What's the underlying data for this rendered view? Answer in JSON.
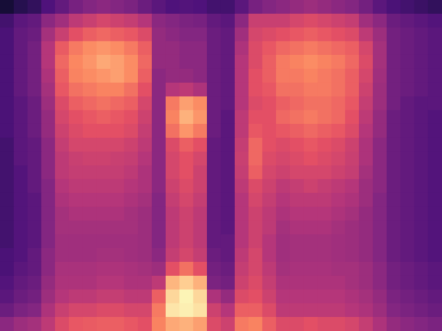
{
  "chart_data": {
    "type": "heatmap",
    "tick_labels": false,
    "value_range": [
      0,
      100
    ],
    "cells": [
      [
        10,
        15,
        18,
        25,
        30,
        35,
        38,
        40,
        38,
        36,
        32,
        28,
        25,
        26,
        25,
        22,
        22,
        28,
        35,
        38,
        40,
        42,
        44,
        42,
        40,
        38,
        34,
        28,
        24,
        22,
        20,
        18
      ],
      [
        22,
        28,
        30,
        40,
        45,
        52,
        55,
        58,
        56,
        54,
        50,
        40,
        38,
        36,
        35,
        30,
        28,
        40,
        55,
        55,
        55,
        58,
        60,
        58,
        56,
        54,
        45,
        40,
        32,
        30,
        28,
        26
      ],
      [
        24,
        30,
        32,
        46,
        55,
        62,
        66,
        68,
        66,
        64,
        60,
        42,
        40,
        38,
        38,
        32,
        30,
        45,
        58,
        60,
        62,
        64,
        66,
        64,
        62,
        60,
        52,
        44,
        34,
        32,
        30,
        28
      ],
      [
        24,
        30,
        34,
        50,
        65,
        72,
        76,
        78,
        76,
        72,
        66,
        42,
        42,
        40,
        40,
        32,
        30,
        48,
        60,
        64,
        68,
        70,
        72,
        70,
        68,
        66,
        58,
        46,
        34,
        32,
        30,
        28
      ],
      [
        24,
        30,
        34,
        50,
        68,
        75,
        78,
        82,
        80,
        76,
        68,
        42,
        42,
        40,
        40,
        32,
        30,
        50,
        60,
        66,
        72,
        74,
        76,
        74,
        72,
        68,
        60,
        46,
        34,
        32,
        30,
        28
      ],
      [
        24,
        30,
        34,
        48,
        66,
        74,
        76,
        78,
        80,
        76,
        66,
        40,
        42,
        42,
        40,
        32,
        30,
        50,
        62,
        66,
        72,
        72,
        74,
        72,
        70,
        66,
        58,
        45,
        34,
        32,
        30,
        28
      ],
      [
        24,
        30,
        34,
        46,
        64,
        70,
        72,
        74,
        74,
        70,
        62,
        40,
        50,
        52,
        48,
        32,
        30,
        50,
        62,
        64,
        70,
        70,
        72,
        72,
        70,
        66,
        56,
        44,
        34,
        32,
        30,
        28
      ],
      [
        24,
        28,
        32,
        44,
        60,
        66,
        68,
        70,
        68,
        66,
        58,
        40,
        72,
        80,
        76,
        32,
        30,
        50,
        60,
        62,
        66,
        68,
        70,
        70,
        68,
        64,
        54,
        44,
        34,
        30,
        28,
        28
      ],
      [
        24,
        28,
        32,
        42,
        58,
        62,
        64,
        66,
        64,
        62,
        56,
        40,
        74,
        84,
        78,
        32,
        28,
        52,
        62,
        62,
        68,
        70,
        72,
        70,
        68,
        62,
        52,
        42,
        32,
        30,
        28,
        26
      ],
      [
        24,
        28,
        32,
        42,
        56,
        60,
        62,
        62,
        62,
        60,
        54,
        40,
        70,
        78,
        72,
        32,
        28,
        52,
        64,
        62,
        64,
        66,
        68,
        66,
        64,
        60,
        50,
        42,
        32,
        30,
        28,
        26
      ],
      [
        22,
        28,
        30,
        40,
        54,
        58,
        58,
        58,
        58,
        56,
        52,
        40,
        60,
        66,
        62,
        30,
        28,
        54,
        68,
        62,
        60,
        62,
        64,
        62,
        60,
        56,
        48,
        40,
        32,
        30,
        28,
        26
      ],
      [
        22,
        28,
        30,
        40,
        52,
        55,
        56,
        56,
        55,
        54,
        50,
        40,
        58,
        62,
        58,
        30,
        28,
        55,
        68,
        60,
        58,
        60,
        62,
        60,
        58,
        55,
        48,
        40,
        32,
        30,
        28,
        26
      ],
      [
        22,
        26,
        30,
        40,
        52,
        54,
        54,
        54,
        54,
        52,
        48,
        40,
        58,
        62,
        56,
        30,
        28,
        54,
        66,
        58,
        56,
        58,
        58,
        58,
        56,
        54,
        46,
        40,
        32,
        30,
        28,
        26
      ],
      [
        22,
        26,
        30,
        38,
        50,
        52,
        52,
        52,
        52,
        50,
        48,
        40,
        56,
        60,
        56,
        30,
        28,
        52,
        60,
        56,
        52,
        54,
        56,
        54,
        52,
        50,
        44,
        40,
        32,
        30,
        28,
        26
      ],
      [
        22,
        26,
        28,
        38,
        48,
        50,
        50,
        50,
        50,
        48,
        46,
        38,
        54,
        58,
        54,
        30,
        28,
        50,
        58,
        54,
        50,
        52,
        52,
        52,
        50,
        48,
        44,
        38,
        32,
        30,
        28,
        26
      ],
      [
        22,
        26,
        28,
        38,
        46,
        48,
        48,
        48,
        48,
        46,
        44,
        38,
        52,
        56,
        52,
        30,
        28,
        50,
        56,
        52,
        48,
        50,
        50,
        50,
        48,
        46,
        42,
        38,
        32,
        30,
        28,
        26
      ],
      [
        22,
        26,
        28,
        38,
        46,
        46,
        46,
        46,
        46,
        46,
        44,
        38,
        52,
        56,
        52,
        30,
        28,
        50,
        56,
        52,
        46,
        48,
        48,
        48,
        46,
        44,
        42,
        38,
        32,
        30,
        28,
        26
      ],
      [
        22,
        26,
        28,
        38,
        45,
        45,
        45,
        45,
        45,
        45,
        44,
        38,
        52,
        56,
        52,
        30,
        30,
        50,
        56,
        50,
        45,
        46,
        46,
        46,
        45,
        44,
        42,
        38,
        32,
        30,
        28,
        26
      ],
      [
        24,
        26,
        30,
        40,
        45,
        45,
        45,
        46,
        46,
        45,
        44,
        40,
        54,
        58,
        54,
        32,
        30,
        52,
        58,
        50,
        45,
        46,
        46,
        46,
        45,
        44,
        42,
        38,
        32,
        30,
        28,
        26
      ],
      [
        24,
        28,
        30,
        40,
        47,
        47,
        47,
        48,
        48,
        47,
        46,
        44,
        62,
        70,
        62,
        34,
        32,
        54,
        58,
        52,
        46,
        47,
        47,
        47,
        46,
        46,
        44,
        40,
        34,
        32,
        30,
        28
      ],
      [
        26,
        30,
        32,
        42,
        48,
        48,
        48,
        50,
        50,
        48,
        48,
        52,
        85,
        90,
        84,
        36,
        34,
        56,
        60,
        54,
        48,
        48,
        48,
        48,
        48,
        46,
        44,
        40,
        34,
        32,
        30,
        28
      ],
      [
        28,
        32,
        34,
        44,
        50,
        52,
        52,
        54,
        54,
        52,
        52,
        66,
        92,
        98,
        92,
        48,
        42,
        60,
        62,
        56,
        50,
        50,
        50,
        50,
        50,
        48,
        46,
        42,
        36,
        34,
        32,
        30
      ],
      [
        32,
        36,
        38,
        48,
        55,
        58,
        58,
        60,
        60,
        58,
        58,
        72,
        95,
        97,
        94,
        56,
        50,
        66,
        66,
        60,
        52,
        52,
        52,
        52,
        52,
        50,
        48,
        44,
        38,
        36,
        34,
        32
      ],
      [
        40,
        44,
        46,
        52,
        60,
        64,
        65,
        66,
        66,
        64,
        62,
        74,
        82,
        84,
        80,
        60,
        56,
        72,
        74,
        66,
        60,
        60,
        62,
        60,
        60,
        58,
        54,
        48,
        42,
        40,
        38,
        36
      ]
    ]
  }
}
